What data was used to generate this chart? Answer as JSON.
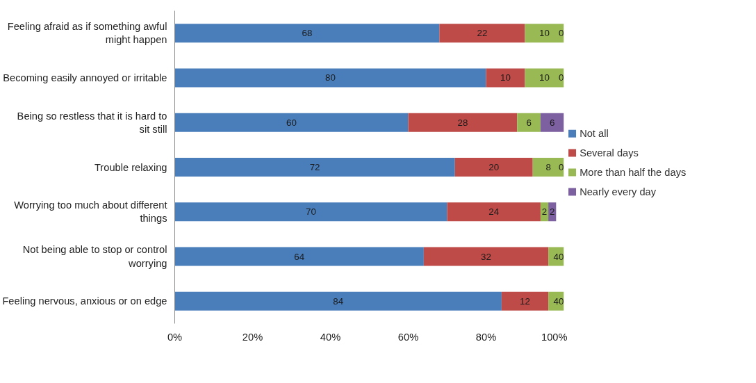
{
  "chart_data": {
    "type": "bar",
    "orientation": "horizontal",
    "stacked": true,
    "data_labels": true,
    "legend": "right",
    "grid": false,
    "categories": [
      "Feeling afraid as if something awful might happen",
      "Becoming easily annoyed or irritable",
      "Being so restless that it is hard to sit still",
      "Trouble relaxing",
      "Worrying too much about different things",
      "Not being able to stop or control worrying",
      "Feeling nervous, anxious or on edge"
    ],
    "series": [
      {
        "name": "Not all",
        "color": "#4a7ebb",
        "values": [
          68,
          80,
          60,
          72,
          70,
          64,
          84
        ]
      },
      {
        "name": "Several days",
        "color": "#be4b48",
        "values": [
          22,
          10,
          28,
          20,
          24,
          32,
          12
        ]
      },
      {
        "name": "More than half the days",
        "color": "#98b954",
        "values": [
          10,
          10,
          6,
          8,
          2,
          4,
          4
        ]
      },
      {
        "name": "Nearly every day",
        "color": "#7d60a0",
        "values": [
          0,
          0,
          6,
          0,
          2,
          0,
          0
        ]
      }
    ],
    "xlim": [
      0,
      100
    ],
    "xticks": [
      {
        "value": 0,
        "label": "0%"
      },
      {
        "value": 20,
        "label": "20%"
      },
      {
        "value": 40,
        "label": "40%"
      },
      {
        "value": 60,
        "label": "60%"
      },
      {
        "value": 80,
        "label": "80%"
      },
      {
        "value": 100,
        "label": "100%"
      }
    ]
  }
}
